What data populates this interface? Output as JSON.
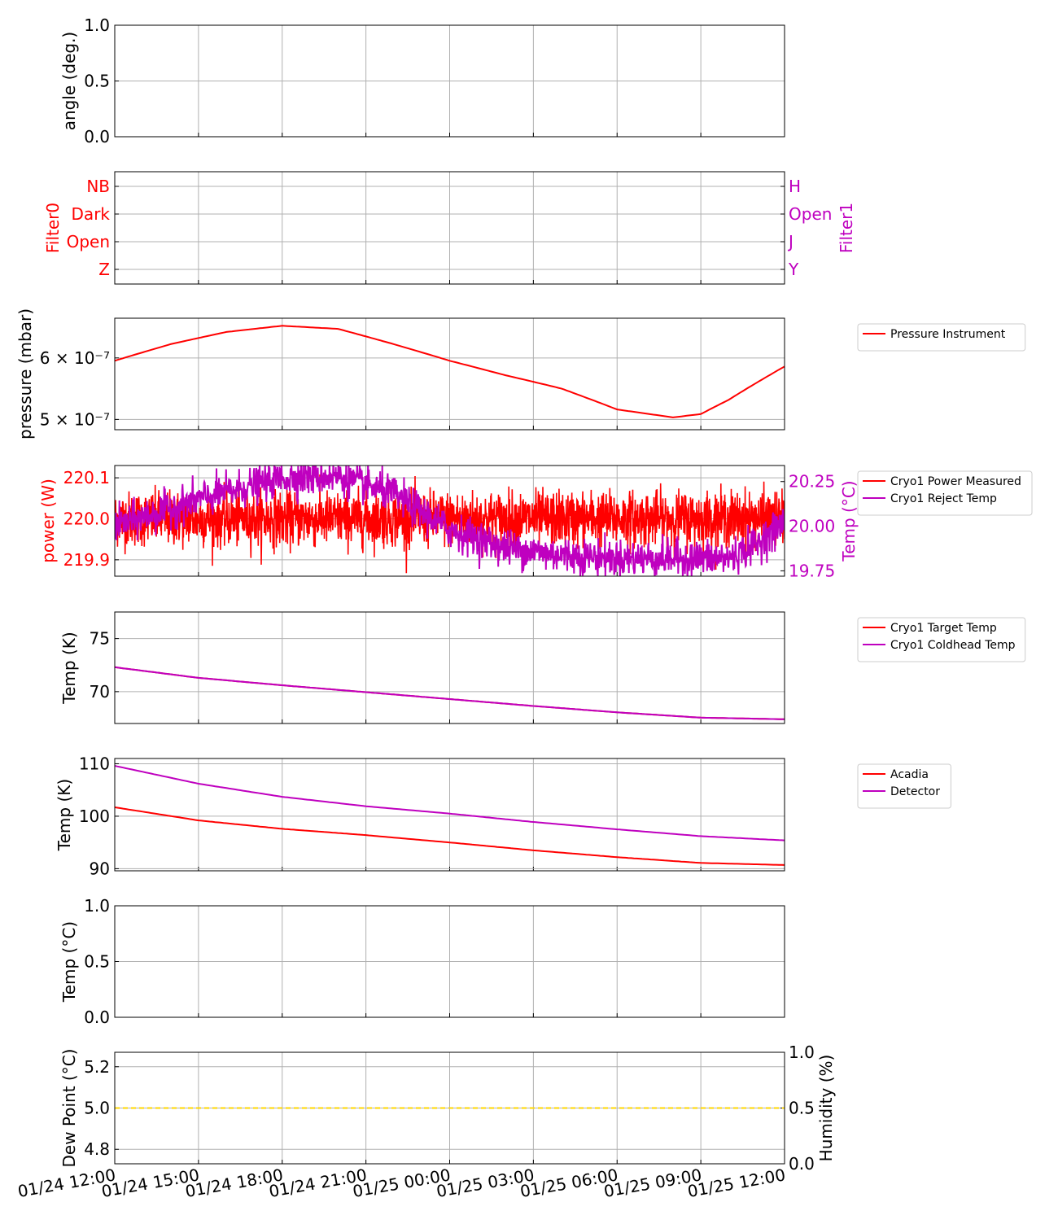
{
  "colors": {
    "red": "#ff0000",
    "magenta": "#bf00bf",
    "gold": "#ffd700",
    "grid": "#b0b0b0"
  },
  "x_axis": {
    "tick_labels": [
      "01/24 12:00",
      "01/24 15:00",
      "01/24 18:00",
      "01/24 21:00",
      "01/25 00:00",
      "01/25 03:00",
      "01/25 06:00",
      "01/25 09:00",
      "01/25 12:00"
    ],
    "range": [
      "2024-01-24 12:00",
      "2024-01-25 12:00"
    ]
  },
  "chart_data": [
    {
      "id": "angle",
      "type": "line",
      "ylabel": "angle (deg.)",
      "ylim": [
        0.0,
        1.0
      ],
      "y_ticks": [
        "0.0",
        "0.5",
        "1.0"
      ],
      "series": []
    },
    {
      "id": "filters",
      "type": "line",
      "ylabel": "Filter0",
      "ylabel_right": "Filter1",
      "y_ticks": [
        "Z",
        "Open",
        "Dark",
        "NB"
      ],
      "y_ticks_right": [
        "Y",
        "J",
        "Open",
        "H"
      ],
      "series": []
    },
    {
      "id": "pressure",
      "type": "line",
      "ylabel": "pressure (mbar)",
      "yscale": "log",
      "ylim": [
        4.85e-07,
        6.75e-07
      ],
      "y_ticks": [
        "5 × 10⁻⁷",
        "6 × 10⁻⁷"
      ],
      "legend_position": "outside-right",
      "series": [
        {
          "name": "Pressure Instrument",
          "color": "#ff0000",
          "x_hours": [
            0,
            2,
            4,
            6,
            8,
            10,
            12,
            14,
            16,
            18,
            20,
            21,
            22,
            24
          ],
          "values": [
            5.95e-07,
            6.25e-07,
            6.48e-07,
            6.6e-07,
            6.54e-07,
            6.25e-07,
            5.95e-07,
            5.7e-07,
            5.48e-07,
            5.15e-07,
            5.03e-07,
            5.08e-07,
            5.3e-07,
            5.85e-07
          ]
        }
      ]
    },
    {
      "id": "cryo_power",
      "type": "line",
      "ylabel": "power (W)",
      "ylabel_right": "Temp (°C)",
      "ylim": [
        219.86,
        220.13
      ],
      "ylim_right": [
        19.72,
        20.34
      ],
      "y_ticks": [
        "219.9",
        "220.0",
        "220.1"
      ],
      "y_ticks_right": [
        "19.75",
        "20.00",
        "20.25"
      ],
      "legend_position": "outside-right",
      "series": [
        {
          "name": "Cryo1 Power Measured",
          "color": "#ff0000",
          "axis": "left",
          "mean": 220.0,
          "noise": 0.06
        },
        {
          "name": "Cryo1 Reject Temp",
          "color": "#bf00bf",
          "axis": "right",
          "x_hours": [
            0,
            3,
            6,
            8,
            10,
            12,
            14,
            16,
            18,
            20,
            22,
            23,
            24
          ],
          "values": [
            20.0,
            20.15,
            20.27,
            20.28,
            20.18,
            19.98,
            19.88,
            19.84,
            19.82,
            19.82,
            19.82,
            19.9,
            20.02
          ]
        }
      ]
    },
    {
      "id": "cryo_temp",
      "type": "line",
      "ylabel": "Temp (K)",
      "ylim": [
        67.0,
        77.5
      ],
      "y_ticks": [
        "70",
        "75"
      ],
      "legend_position": "outside-right",
      "series": [
        {
          "name": "Cryo1 Target Temp",
          "color": "#ff0000",
          "x_hours": [
            0,
            3,
            6,
            9,
            12,
            15,
            18,
            21,
            24
          ],
          "values": [
            72.3,
            71.3,
            70.6,
            69.95,
            69.3,
            68.65,
            68.05,
            67.55,
            67.4
          ]
        },
        {
          "name": "Cryo1 Coldhead Temp",
          "color": "#bf00bf",
          "x_hours": [
            0,
            3,
            6,
            9,
            12,
            15,
            18,
            21,
            24
          ],
          "values": [
            72.3,
            71.3,
            70.6,
            69.95,
            69.3,
            68.65,
            68.05,
            67.55,
            67.4
          ]
        }
      ]
    },
    {
      "id": "detector_temp",
      "type": "line",
      "ylabel": "Temp (K)",
      "ylim": [
        89.6,
        111.0
      ],
      "y_ticks": [
        "90",
        "100",
        "110"
      ],
      "legend_position": "outside-right",
      "series": [
        {
          "name": "Acadia",
          "color": "#ff0000",
          "x_hours": [
            0,
            3,
            6,
            9,
            12,
            15,
            18,
            21,
            24
          ],
          "values": [
            101.7,
            99.2,
            97.6,
            96.4,
            95.0,
            93.5,
            92.2,
            91.1,
            90.7
          ]
        },
        {
          "name": "Detector",
          "color": "#bf00bf",
          "x_hours": [
            0,
            3,
            6,
            9,
            12,
            15,
            18,
            21,
            24
          ],
          "values": [
            109.6,
            106.2,
            103.7,
            101.9,
            100.5,
            98.9,
            97.5,
            96.2,
            95.4
          ]
        }
      ]
    },
    {
      "id": "ambient_temp",
      "type": "line",
      "ylabel": "Temp (°C)",
      "ylim": [
        0.0,
        1.0
      ],
      "y_ticks": [
        "0.0",
        "0.5",
        "1.0"
      ],
      "series": []
    },
    {
      "id": "dewpoint",
      "type": "line",
      "ylabel": "Dew Point (°C)",
      "ylabel_right": "Humidity (%)",
      "ylim": [
        4.73,
        5.27
      ],
      "ylim_right": [
        0.0,
        1.0
      ],
      "y_ticks": [
        "4.8",
        "5.0",
        "5.2"
      ],
      "y_ticks_right": [
        "0.0",
        "0.5",
        "1.0"
      ],
      "series": [
        {
          "color": "#ffd700",
          "style": "dashed",
          "x_hours": [
            0,
            24
          ],
          "values": [
            5.0,
            5.0
          ]
        }
      ]
    }
  ]
}
